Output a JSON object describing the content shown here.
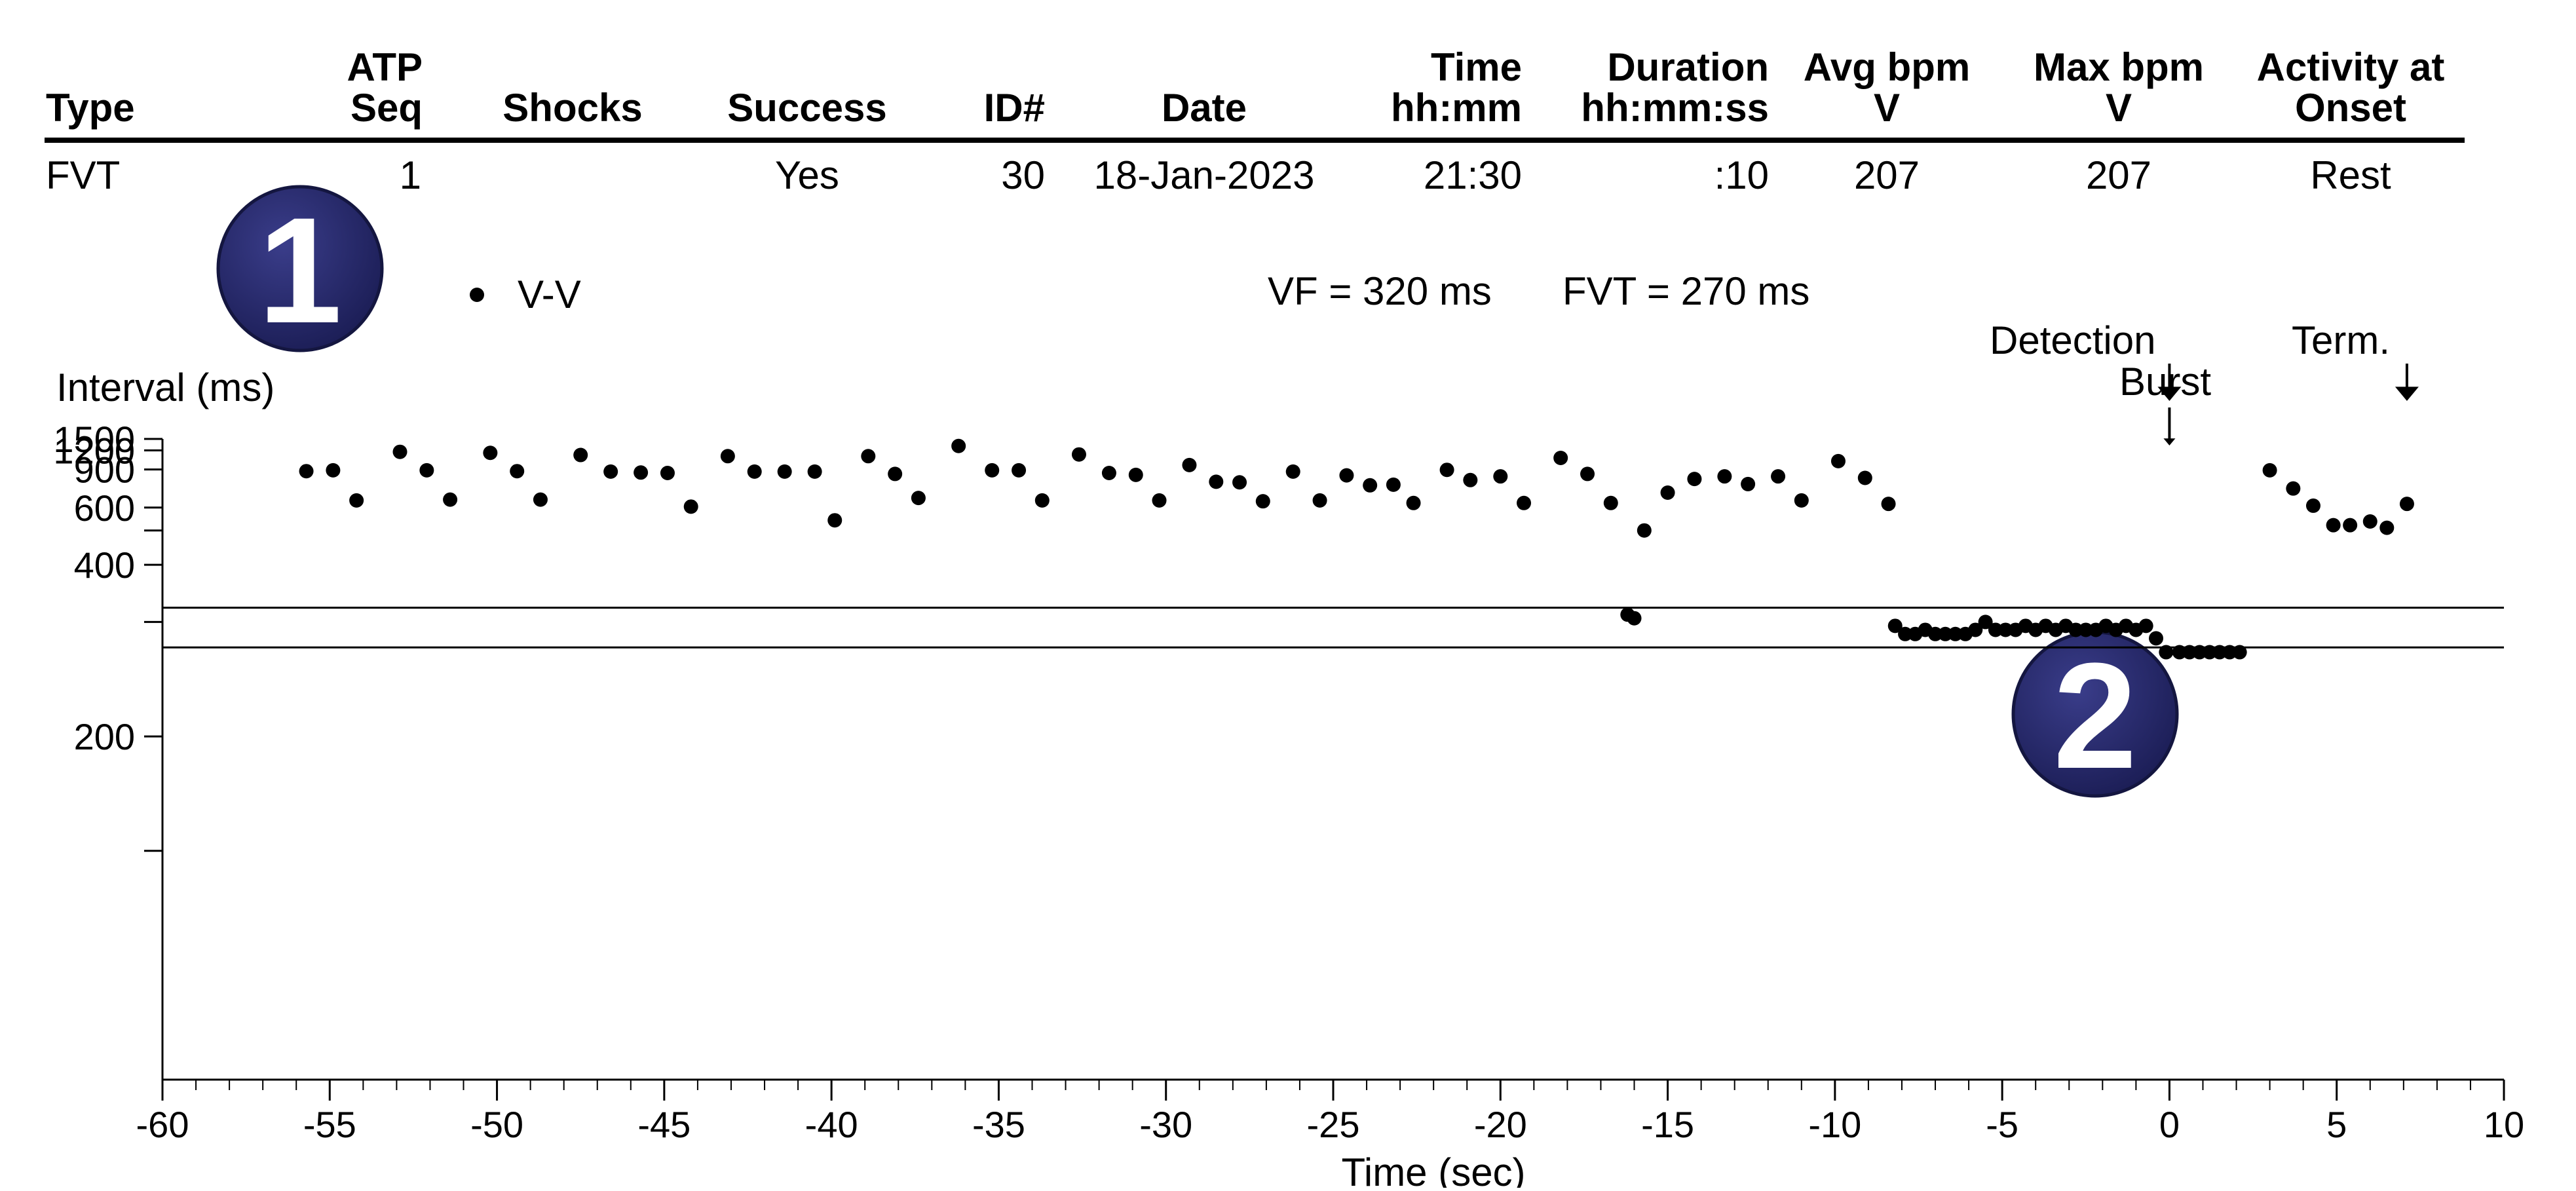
{
  "table": {
    "headers": [
      {
        "line1": "",
        "line2": "Type"
      },
      {
        "line1": "ATP",
        "line2": "Seq"
      },
      {
        "line1": "",
        "line2": "Shocks"
      },
      {
        "line1": "",
        "line2": "Success"
      },
      {
        "line1": "",
        "line2": "ID#"
      },
      {
        "line1": "",
        "line2": "Date"
      },
      {
        "line1": "Time",
        "line2": "hh:mm"
      },
      {
        "line1": "Duration",
        "line2": "hh:mm:ss"
      },
      {
        "line1": "Avg bpm",
        "line2": "V"
      },
      {
        "line1": "Max bpm",
        "line2": "V"
      },
      {
        "line1": "Activity at",
        "line2": "Onset"
      }
    ],
    "row": [
      "FVT",
      "1",
      "",
      "Yes",
      "30",
      "18-Jan-2023",
      "21:30",
      ":10",
      "207",
      "207",
      "Rest"
    ]
  },
  "badges": [
    "1",
    "2"
  ],
  "legend": {
    "marker": "•",
    "label": "V-V"
  },
  "zones": {
    "vf": "VF = 320 ms",
    "fvt": "FVT = 270 ms"
  },
  "markers": {
    "detection": "Detection",
    "burst": "Burst",
    "term": "Term."
  },
  "chart_data": {
    "type": "scatter",
    "xlabel": "Time (sec)",
    "ylabel": "Interval (ms)",
    "xlim": [
      -60,
      10
    ],
    "xticks": [
      -60,
      -55,
      -50,
      -45,
      -40,
      -35,
      -30,
      -25,
      -20,
      -15,
      -10,
      -5,
      0,
      5,
      10
    ],
    "ylim": [
      100,
      1500
    ],
    "yscale": "reciprocal",
    "yticks": [
      {
        "value": 1500,
        "label": "1500"
      },
      {
        "value": 1200,
        "label": "1200"
      },
      {
        "value": 900,
        "label": "900"
      },
      {
        "value": 600,
        "label": "600"
      },
      {
        "value": 500,
        "label": ""
      },
      {
        "value": 400,
        "label": "400"
      },
      {
        "value": 300,
        "label": ""
      },
      {
        "value": 200,
        "label": "200"
      },
      {
        "value": 150,
        "label": ""
      }
    ],
    "reference_lines": [
      320,
      270
    ],
    "event_markers": {
      "detection": 0,
      "burst": 0,
      "term": 7.1
    },
    "series": [
      {
        "name": "V-V",
        "x": [
          -55.7,
          -54.9,
          -54.2,
          -52.9,
          -52.1,
          -51.4,
          -50.2,
          -49.4,
          -48.7,
          -47.5,
          -46.6,
          -45.7,
          -44.9,
          -44.2,
          -43.1,
          -42.3,
          -41.4,
          -40.5,
          -39.9,
          -38.9,
          -38.1,
          -37.4,
          -36.2,
          -35.2,
          -34.4,
          -33.7,
          -32.6,
          -31.7,
          -30.9,
          -30.2,
          -29.3,
          -28.5,
          -27.8,
          -27.1,
          -26.2,
          -25.4,
          -24.6,
          -23.9,
          -23.2,
          -22.6,
          -21.6,
          -20.9,
          -20.0,
          -19.3,
          -18.2,
          -17.4,
          -16.7,
          -15.7,
          -15.0,
          -14.2,
          -13.3,
          -12.6,
          -11.7,
          -11.0,
          -9.9,
          -9.1,
          -8.4,
          -16.2,
          -16.0,
          -8.2,
          -7.9,
          -7.6,
          -7.3,
          -7.0,
          -6.7,
          -6.4,
          -6.1,
          -5.8,
          -5.5,
          -5.2,
          -4.9,
          -4.6,
          -4.3,
          -4.0,
          -3.7,
          -3.4,
          -3.1,
          -2.8,
          -2.5,
          -2.2,
          -1.9,
          -1.6,
          -1.3,
          -1.0,
          -0.7,
          -0.4,
          -0.1,
          0.3,
          0.6,
          0.9,
          1.2,
          1.5,
          1.8,
          2.1,
          3.0,
          3.7,
          4.3,
          4.9,
          5.4,
          6.0,
          6.5,
          7.1
        ],
        "y": [
          880,
          890,
          640,
          1170,
          890,
          645,
          1150,
          880,
          645,
          1110,
          875,
          865,
          860,
          605,
          1090,
          875,
          875,
          875,
          540,
          1090,
          850,
          655,
          1300,
          890,
          890,
          640,
          1120,
          860,
          840,
          640,
          955,
          775,
          770,
          635,
          875,
          640,
          835,
          745,
          750,
          625,
          895,
          790,
          825,
          625,
          1060,
          850,
          625,
          500,
          690,
          800,
          825,
          755,
          825,
          640,
          1010,
          810,
          620,
          310,
          305,
          295,
          285,
          285,
          290,
          285,
          285,
          285,
          285,
          290,
          300,
          290,
          290,
          290,
          295,
          290,
          295,
          290,
          295,
          290,
          290,
          290,
          295,
          290,
          295,
          290,
          295,
          280,
          265,
          265,
          265,
          265,
          265,
          265,
          265,
          265,
          890,
          720,
          610,
          520,
          520,
          535,
          510,
          620
        ]
      }
    ]
  }
}
